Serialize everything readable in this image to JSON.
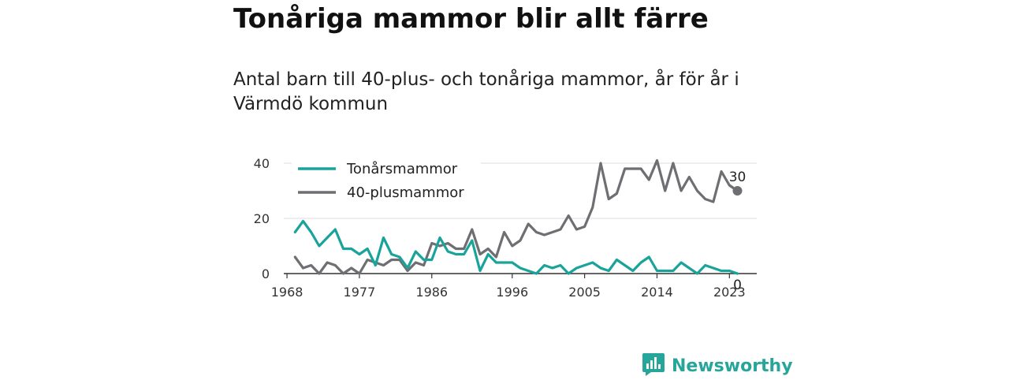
{
  "header": {
    "title": "Tonåriga mammor blir allt färre",
    "subtitle": "Antal barn till 40-plus- och tonåriga mammor, år för år i Värmdö kommun"
  },
  "brand": {
    "name": "Newsworthy",
    "icon": "newsworthy-logo-icon",
    "color": "#26a69a"
  },
  "chart_data": {
    "type": "line",
    "title": "",
    "xlabel": "",
    "ylabel": "",
    "x": [
      1969,
      1970,
      1971,
      1972,
      1973,
      1974,
      1975,
      1976,
      1977,
      1978,
      1979,
      1980,
      1981,
      1982,
      1983,
      1984,
      1985,
      1986,
      1987,
      1988,
      1989,
      1990,
      1991,
      1992,
      1993,
      1994,
      1995,
      1996,
      1997,
      1998,
      1999,
      2000,
      2001,
      2002,
      2003,
      2004,
      2005,
      2006,
      2007,
      2008,
      2009,
      2010,
      2011,
      2012,
      2013,
      2014,
      2015,
      2016,
      2017,
      2018,
      2019,
      2020,
      2021,
      2022,
      2023,
      2024
    ],
    "x_ticks": [
      1968,
      1977,
      1986,
      1996,
      2005,
      2014,
      2023
    ],
    "x_tick_labels": [
      "1968",
      "1977",
      "1986",
      "1996",
      "2005",
      "2014",
      "2023"
    ],
    "y_ticks": [
      0,
      20,
      40
    ],
    "y_tick_labels": [
      "0",
      "20",
      "40"
    ],
    "ylim": [
      0,
      40
    ],
    "xlim": [
      1967.6,
      2026.4
    ],
    "grid": true,
    "legend": "top-left",
    "series": [
      {
        "name": "Tonårsmammor",
        "color": "#1aa39a",
        "values": [
          15,
          19,
          15,
          10,
          13,
          16,
          9,
          9,
          7,
          9,
          3,
          13,
          7,
          6,
          2,
          8,
          5,
          5,
          13,
          8,
          7,
          7,
          12,
          1,
          7,
          4,
          4,
          4,
          2,
          1,
          0,
          3,
          2,
          3,
          0,
          2,
          3,
          4,
          2,
          1,
          5,
          3,
          1,
          4,
          6,
          1,
          1,
          1,
          4,
          2,
          0,
          3,
          2,
          1,
          1,
          0
        ],
        "end_label": "0"
      },
      {
        "name": "40-plusmammor",
        "color": "#6e6e73",
        "values": [
          6,
          2,
          3,
          0,
          4,
          3,
          0,
          2,
          0,
          5,
          4,
          3,
          5,
          5,
          1,
          4,
          3,
          11,
          10,
          11,
          9,
          9,
          16,
          7,
          9,
          6,
          15,
          10,
          12,
          18,
          15,
          14,
          15,
          16,
          21,
          16,
          17,
          24,
          40,
          27,
          29,
          38,
          38,
          38,
          34,
          41,
          30,
          40,
          30,
          35,
          30,
          27,
          26,
          37,
          32,
          30
        ],
        "end_label": "30"
      }
    ]
  }
}
